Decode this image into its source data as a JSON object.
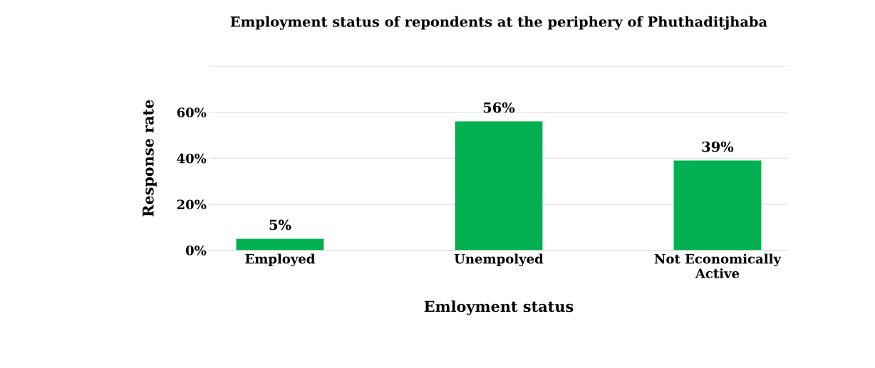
{
  "chart_data": {
    "type": "bar",
    "title": "Employment status of repondents at the periphery of Phuthaditjhaba",
    "xlabel": "Emloyment status",
    "ylabel": "Response rate",
    "categories": [
      "Employed",
      "Unempolyed",
      "Not Economically\nActive"
    ],
    "values": [
      5,
      56,
      39
    ],
    "color": "#00b050",
    "value_labels": [
      "5%",
      "56%",
      "39%"
    ],
    "ylim": [
      0,
      80
    ],
    "yticks": [
      {
        "value": 0,
        "label": "0%"
      },
      {
        "value": 20,
        "label": "20%"
      },
      {
        "value": 40,
        "label": "40%"
      },
      {
        "value": 60,
        "label": "60%"
      },
      {
        "value": 80,
        "label": null
      }
    ],
    "grid": "y"
  }
}
